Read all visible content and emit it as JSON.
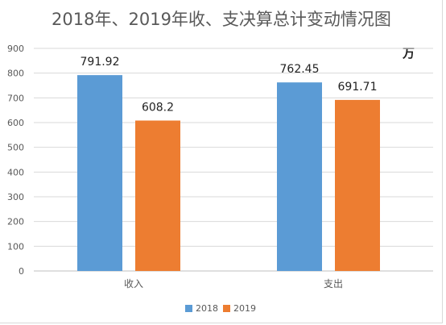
{
  "chart_data": {
    "type": "bar",
    "title": "2018年、2019年收、支决算总计变动情况图",
    "unit": "万",
    "categories": [
      "收入",
      "支出"
    ],
    "series": [
      {
        "name": "2018",
        "values": [
          791.92,
          762.45
        ],
        "labels": [
          "791.92",
          "762.45"
        ],
        "color": "#5b9bd5"
      },
      {
        "name": "2019",
        "values": [
          608.2,
          691.71
        ],
        "labels": [
          "608.2",
          "691.71"
        ],
        "color": "#ed7d31"
      }
    ],
    "y_ticks": [
      "0",
      "100",
      "200",
      "300",
      "400",
      "500",
      "600",
      "700",
      "800",
      "900"
    ],
    "ylim": [
      0,
      900
    ],
    "grid": true,
    "legend_position": "bottom"
  }
}
